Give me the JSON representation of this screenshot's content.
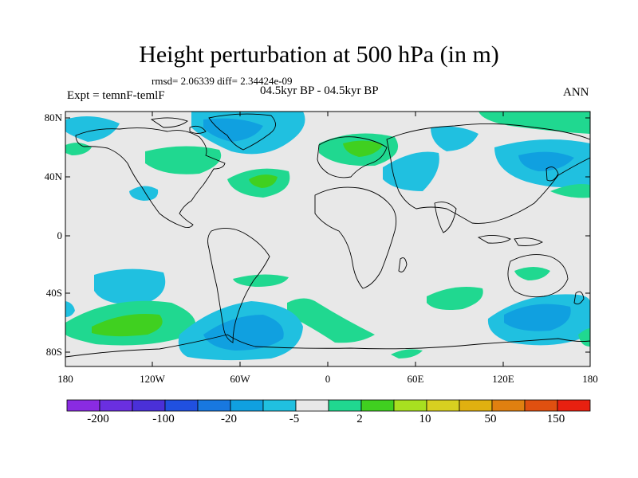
{
  "title": "Height perturbation at 500 hPa (in m)",
  "stats": "rmsd= 2.06339 diff= 2.34424e-09",
  "period": "04.5kyr BP - 04.5kyr BP",
  "experiment": "Expt = temnF-temlF",
  "season": "ANN",
  "lat_labels": [
    "80N",
    "40N",
    "0",
    "40S",
    "80S"
  ],
  "lon_labels": [
    "180",
    "120W",
    "60W",
    "0",
    "60E",
    "120E",
    "180"
  ],
  "colorbar": {
    "labels": [
      "-200",
      "-100",
      "-20",
      "-5",
      "2",
      "10",
      "50",
      "150"
    ],
    "colors": [
      "#8a2be2",
      "#6a2fe0",
      "#4a30d8",
      "#2050e0",
      "#1878e0",
      "#10a0e0",
      "#20c0e0",
      "#e8e8e8",
      "#20d890",
      "#40d020",
      "#a8e020",
      "#d8d020",
      "#e0b010",
      "#e08010",
      "#e05010",
      "#e82010"
    ]
  },
  "colors": {
    "land_outline": "#000000",
    "background": "#e8e8e8",
    "positive_low": "#20d890",
    "positive_mid": "#40d020",
    "negative_low": "#20c0e0",
    "negative_mid": "#10a0e0"
  }
}
